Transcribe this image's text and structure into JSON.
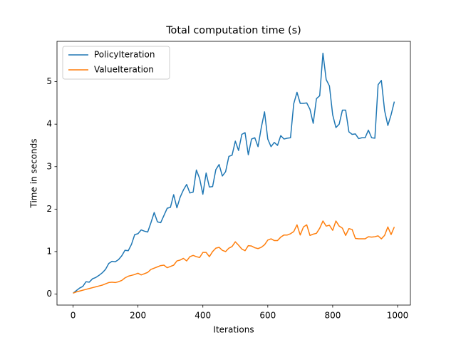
{
  "chart_data": {
    "type": "line",
    "title": "Total computation time (s)",
    "x_label": "Iterations",
    "y_label": "Time in seconds",
    "x": [
      0,
      10,
      20,
      30,
      40,
      50,
      60,
      70,
      80,
      90,
      100,
      110,
      120,
      130,
      140,
      150,
      160,
      170,
      180,
      190,
      200,
      210,
      220,
      230,
      240,
      250,
      260,
      270,
      280,
      290,
      300,
      310,
      320,
      330,
      340,
      350,
      360,
      370,
      380,
      390,
      400,
      410,
      420,
      430,
      440,
      450,
      460,
      470,
      480,
      490,
      500,
      510,
      520,
      530,
      540,
      550,
      560,
      570,
      580,
      590,
      600,
      610,
      620,
      630,
      640,
      650,
      660,
      670,
      680,
      690,
      700,
      710,
      720,
      730,
      740,
      750,
      760,
      770,
      780,
      790,
      800,
      810,
      820,
      830,
      840,
      850,
      860,
      870,
      880,
      890,
      900,
      910,
      920,
      930,
      940,
      950,
      960,
      970,
      980,
      990
    ],
    "series": [
      {
        "name": "PolicyIteration",
        "color": "#1f77b4",
        "values": [
          0.02,
          0.08,
          0.14,
          0.18,
          0.29,
          0.28,
          0.36,
          0.39,
          0.44,
          0.5,
          0.58,
          0.72,
          0.77,
          0.76,
          0.81,
          0.9,
          1.03,
          1.02,
          1.17,
          1.4,
          1.42,
          1.51,
          1.48,
          1.46,
          1.68,
          1.92,
          1.7,
          1.68,
          1.85,
          2.02,
          2.04,
          2.34,
          2.03,
          2.28,
          2.45,
          2.58,
          2.38,
          2.4,
          2.92,
          2.72,
          2.35,
          2.85,
          2.52,
          2.53,
          2.93,
          3.05,
          2.78,
          2.88,
          3.24,
          3.27,
          3.6,
          3.38,
          3.76,
          3.8,
          3.28,
          3.65,
          3.68,
          3.47,
          3.92,
          4.29,
          3.65,
          3.47,
          3.57,
          3.5,
          3.73,
          3.65,
          3.67,
          3.68,
          4.48,
          4.75,
          4.49,
          4.49,
          4.5,
          4.35,
          4.02,
          4.6,
          4.67,
          5.67,
          5.05,
          4.9,
          4.22,
          3.92,
          4.0,
          4.33,
          4.33,
          3.82,
          3.76,
          3.77,
          3.66,
          3.68,
          3.68,
          3.86,
          3.68,
          3.67,
          4.93,
          5.03,
          4.32,
          3.97,
          4.22,
          4.53
        ]
      },
      {
        "name": "ValueIteration",
        "color": "#ff7f0e",
        "values": [
          0.02,
          0.05,
          0.07,
          0.09,
          0.11,
          0.13,
          0.15,
          0.17,
          0.19,
          0.21,
          0.24,
          0.27,
          0.28,
          0.27,
          0.29,
          0.32,
          0.38,
          0.42,
          0.44,
          0.46,
          0.49,
          0.45,
          0.48,
          0.51,
          0.58,
          0.61,
          0.64,
          0.67,
          0.68,
          0.62,
          0.65,
          0.68,
          0.78,
          0.8,
          0.84,
          0.78,
          0.88,
          0.91,
          0.88,
          0.86,
          0.98,
          0.98,
          0.88,
          1.0,
          1.08,
          1.1,
          1.03,
          1.0,
          1.08,
          1.12,
          1.23,
          1.15,
          1.06,
          1.02,
          1.14,
          1.13,
          1.09,
          1.07,
          1.1,
          1.16,
          1.27,
          1.3,
          1.26,
          1.26,
          1.34,
          1.39,
          1.39,
          1.42,
          1.47,
          1.63,
          1.39,
          1.58,
          1.63,
          1.38,
          1.41,
          1.43,
          1.55,
          1.72,
          1.6,
          1.62,
          1.5,
          1.72,
          1.6,
          1.55,
          1.38,
          1.54,
          1.52,
          1.31,
          1.3,
          1.3,
          1.3,
          1.35,
          1.34,
          1.35,
          1.37,
          1.3,
          1.38,
          1.58,
          1.4,
          1.58
        ]
      }
    ],
    "xlim": [
      -49.5,
      1039.5
    ],
    "xticks": [
      0,
      200,
      400,
      600,
      800,
      1000
    ],
    "ylim": [
      -0.26,
      5.95
    ],
    "yticks": [
      0,
      1,
      2,
      3,
      4,
      5
    ],
    "legend": "upper left"
  }
}
